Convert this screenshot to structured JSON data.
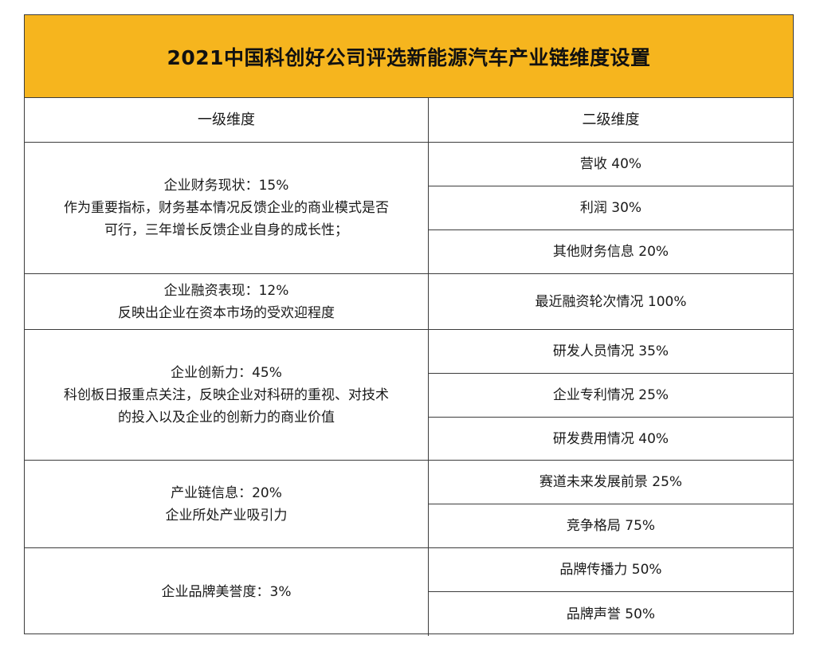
{
  "title": "2021中国科创好公司评选新能源汽车产业链维度设置",
  "headers": {
    "level1": "一级维度",
    "level2": "二级维度"
  },
  "groups": [
    {
      "primary": {
        "name": "企业财务现状：15%",
        "desc_lines": [
          "作为重要指标，财务基本情况反馈企业的商业模式是否",
          "可行，三年增长反馈企业自身的成长性；"
        ]
      },
      "secondary": [
        "营收 40%",
        "利润 30%",
        "其他财务信息 20%"
      ]
    },
    {
      "primary": {
        "name": "企业融资表现：12%",
        "desc_lines": [
          "反映出企业在资本市场的受欢迎程度"
        ]
      },
      "secondary": [
        "最近融资轮次情况 100%"
      ]
    },
    {
      "primary": {
        "name": "企业创新力：45%",
        "desc_lines": [
          "科创板日报重点关注，反映企业对科研的重视、对技术",
          "的投入以及企业的创新力的商业价值"
        ]
      },
      "secondary": [
        "研发人员情况 35%",
        "企业专利情况 25%",
        "研发费用情况 40%"
      ]
    },
    {
      "primary": {
        "name": "产业链信息：20%",
        "desc_lines": [
          "企业所处产业吸引力"
        ]
      },
      "secondary": [
        "赛道未来发展前景 25%",
        "竞争格局 75%"
      ]
    },
    {
      "primary": {
        "name": "企业品牌美誉度：3%",
        "desc_lines": []
      },
      "secondary": [
        "品牌传播力  50%",
        "品牌声誉 50%"
      ]
    }
  ]
}
